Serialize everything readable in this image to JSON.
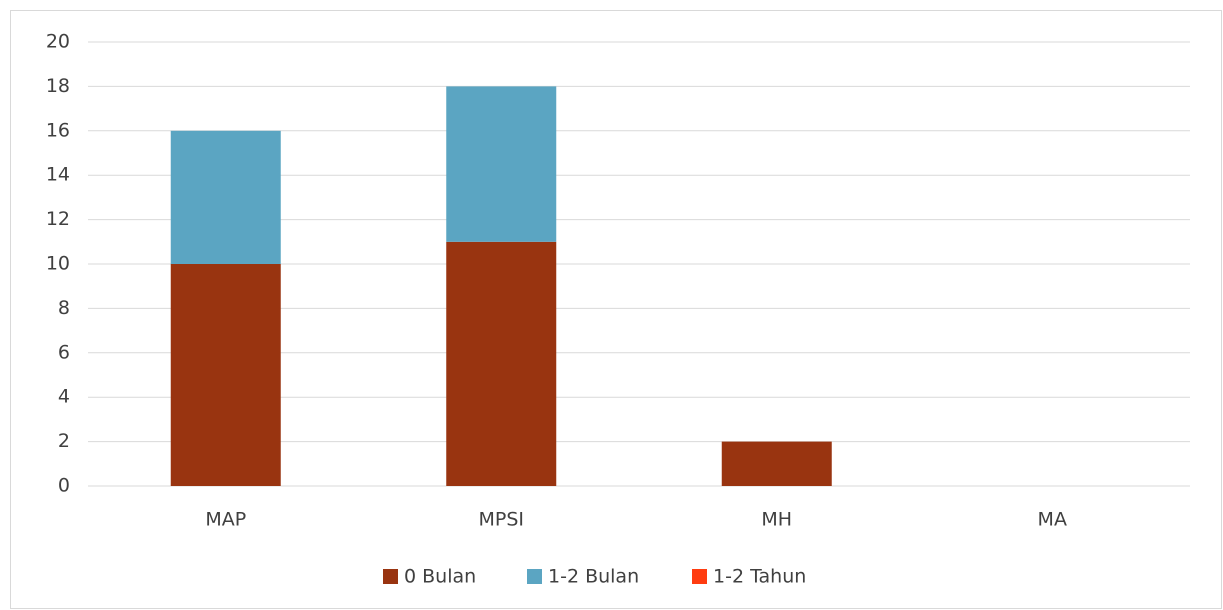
{
  "chart_data": {
    "type": "stacked_bar",
    "categories": [
      "MAP",
      "MPSI",
      "MH",
      "MA"
    ],
    "series": [
      {
        "name": "0 Bulan",
        "color": "#993410",
        "values": [
          10,
          11,
          2,
          0
        ]
      },
      {
        "name": "1-2 Bulan",
        "color": "#5ba5c2",
        "values": [
          6,
          7,
          0,
          0
        ]
      },
      {
        "name": "1-2 Tahun",
        "color": "#ff3c10",
        "values": [
          0,
          0,
          0,
          0
        ]
      }
    ],
    "ylim": [
      0,
      20
    ],
    "yticks": [
      0,
      2,
      4,
      6,
      8,
      10,
      12,
      14,
      16,
      18,
      20
    ],
    "grid": true,
    "legend": "bottom"
  }
}
